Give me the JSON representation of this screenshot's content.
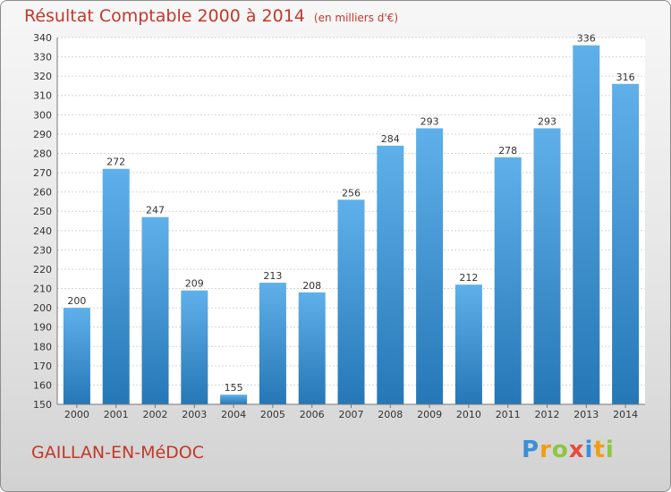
{
  "chart_data": {
    "type": "bar",
    "title": "Résultat Comptable 2000 à 2014",
    "subtitle": "(en milliers d'€)",
    "categories": [
      "2000",
      "2001",
      "2002",
      "2003",
      "2004",
      "2005",
      "2006",
      "2007",
      "2008",
      "2009",
      "2010",
      "2011",
      "2012",
      "2013",
      "2014"
    ],
    "values": [
      200,
      272,
      247,
      209,
      155,
      213,
      208,
      256,
      284,
      293,
      212,
      278,
      293,
      336,
      316
    ],
    "ylim": [
      150,
      340
    ],
    "ytick_step": 10,
    "xlabel": "",
    "ylabel": "",
    "grid": true,
    "colors": {
      "bar_light": "#5fb0ea",
      "bar_dark": "#2677b6",
      "title": "#c0392b"
    }
  },
  "footer": {
    "town": "GAILLAN-EN-MéDOC",
    "logo": {
      "text": "Proxiti",
      "letters": [
        "P",
        "r",
        "o",
        "x",
        "i",
        "t",
        "i"
      ],
      "colors": [
        "#3a8fd9",
        "#f39c12",
        "#8cc63f",
        "#e74c3c",
        "#3a8fd9",
        "#f39c12",
        "#8cc63f"
      ]
    }
  }
}
